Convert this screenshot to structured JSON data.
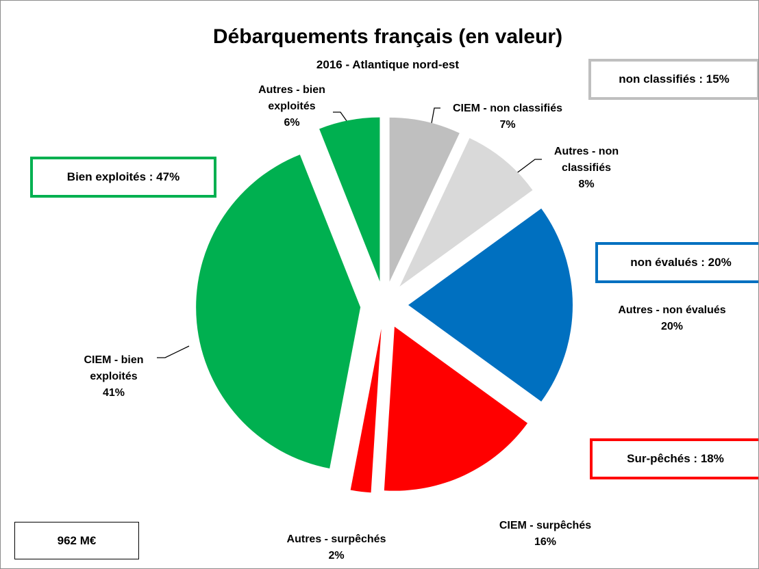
{
  "chart_data": {
    "type": "pie",
    "title": "Débarquements français (en valeur)",
    "subtitle": "2016 - Atlantique nord-est",
    "categories": [
      "CIEM - non classifiés",
      "Autres - non classifiés",
      "Autres - non évalués",
      "CIEM - surpêchés",
      "Autres - surpêchés",
      "CIEM - bien exploités",
      "Autres - bien exploités"
    ],
    "values": [
      7,
      8,
      20,
      16,
      2,
      41,
      6
    ],
    "value_labels": [
      "7%",
      "8%",
      "20%",
      "16%",
      "2%",
      "41%",
      "6%"
    ],
    "colors": [
      "#bfbfbf",
      "#d9d9d9",
      "#0070c0",
      "#ff0000",
      "#ff0000",
      "#00b050",
      "#00b050"
    ],
    "annotations": [
      {
        "text": "non classifiés : 15%",
        "color": "#bfbfbf"
      },
      {
        "text": "Bien exploités : 47%",
        "color": "#00b050"
      },
      {
        "text": "non évalués : 20%",
        "color": "#0070c0"
      },
      {
        "text": "Sur-pêchés : 18%",
        "color": "#ff0000"
      },
      {
        "text": "962 M€",
        "color": "#000000"
      }
    ]
  }
}
